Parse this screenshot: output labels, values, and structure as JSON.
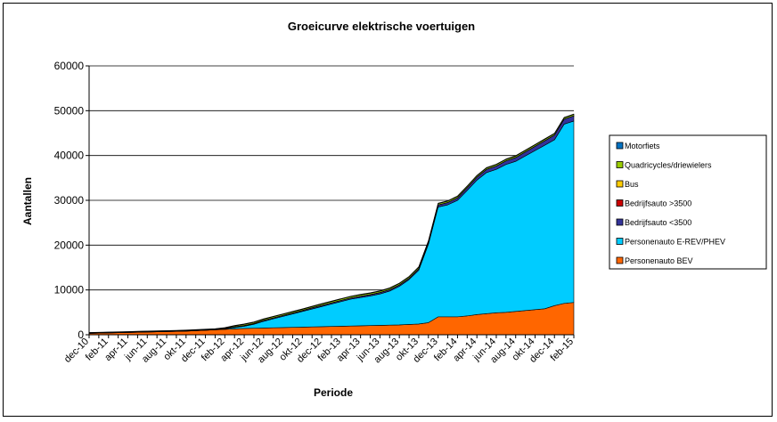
{
  "chart_data": {
    "type": "area",
    "title": "Groeicurve elektrische voertuigen",
    "xlabel": "Periode",
    "ylabel": "Aantallen",
    "ylim": [
      0,
      60000
    ],
    "yticks": [
      0,
      10000,
      20000,
      30000,
      40000,
      50000,
      60000
    ],
    "ytick_labels": [
      "0",
      "10000",
      "20000",
      "30000",
      "40000",
      "50000",
      "60000"
    ],
    "stacked": true,
    "grid": "horizontal",
    "legend_position": "right",
    "x": [
      "dec-10",
      "jan-11",
      "feb-11",
      "mrt-11",
      "apr-11",
      "mei-11",
      "jun-11",
      "jul-11",
      "aug-11",
      "sep-11",
      "okt-11",
      "nov-11",
      "dec-11",
      "jan-12",
      "feb-12",
      "mrt-12",
      "apr-12",
      "mei-12",
      "jun-12",
      "jul-12",
      "aug-12",
      "sep-12",
      "okt-12",
      "nov-12",
      "dec-12",
      "jan-13",
      "feb-13",
      "mrt-13",
      "apr-13",
      "mei-13",
      "jun-13",
      "jul-13",
      "aug-13",
      "sep-13",
      "okt-13",
      "nov-13",
      "dec-13",
      "jan-14",
      "feb-14",
      "mrt-14",
      "apr-14",
      "mei-14",
      "jun-14",
      "jul-14",
      "aug-14",
      "sep-14",
      "okt-14",
      "nov-14",
      "dec-14",
      "jan-15",
      "feb-15"
    ],
    "x_tick_labels": [
      "dec-10",
      "feb-11",
      "apr-11",
      "jun-11",
      "aug-11",
      "okt-11",
      "dec-11",
      "feb-12",
      "apr-12",
      "jun-12",
      "aug-12",
      "okt-12",
      "dec-12",
      "feb-13",
      "apr-13",
      "jun-13",
      "aug-13",
      "okt-13",
      "dec-13",
      "feb-14",
      "apr-14",
      "jun-14",
      "aug-14",
      "okt-14",
      "dec-14",
      "feb-15"
    ],
    "series": [
      {
        "name": "Personenauto BEV",
        "color": "#FF6600",
        "values": [
          300,
          350,
          400,
          450,
          500,
          550,
          600,
          650,
          700,
          750,
          800,
          900,
          1000,
          1100,
          1200,
          1300,
          1400,
          1450,
          1500,
          1550,
          1600,
          1650,
          1700,
          1750,
          1800,
          1850,
          1900,
          1950,
          2000,
          2050,
          2100,
          2150,
          2200,
          2300,
          2400,
          2700,
          4000,
          4000,
          4000,
          4200,
          4500,
          4700,
          4900,
          5000,
          5200,
          5400,
          5600,
          5800,
          6500,
          7000,
          7200
        ]
      },
      {
        "name": "Personenauto E-REV/PHEV",
        "color": "#00CCFF",
        "values": [
          0,
          0,
          0,
          0,
          0,
          0,
          0,
          0,
          0,
          0,
          0,
          0,
          0,
          0,
          100,
          300,
          500,
          900,
          1500,
          2000,
          2500,
          3000,
          3500,
          4000,
          4500,
          5000,
          5500,
          6000,
          6300,
          6600,
          7000,
          7600,
          8600,
          10000,
          12000,
          17500,
          24500,
          25000,
          26000,
          28000,
          30000,
          31500,
          32000,
          33000,
          33500,
          34500,
          35500,
          36500,
          37000,
          40000,
          40500
        ]
      },
      {
        "name": "Bedrijfsauto <3500",
        "color": "#333399",
        "values": [
          100,
          100,
          100,
          100,
          100,
          100,
          100,
          100,
          100,
          100,
          100,
          100,
          100,
          100,
          100,
          150,
          150,
          150,
          200,
          200,
          200,
          200,
          200,
          250,
          250,
          250,
          250,
          250,
          300,
          300,
          300,
          300,
          300,
          300,
          350,
          400,
          450,
          500,
          550,
          600,
          650,
          700,
          750,
          800,
          850,
          900,
          950,
          1000,
          1050,
          1100,
          1150
        ]
      },
      {
        "name": "Bedrijfsauto >3500",
        "color": "#CC0000",
        "values": [
          10,
          10,
          10,
          10,
          10,
          10,
          10,
          10,
          10,
          10,
          10,
          10,
          10,
          10,
          10,
          10,
          10,
          10,
          10,
          10,
          10,
          10,
          10,
          10,
          10,
          10,
          10,
          10,
          10,
          10,
          10,
          10,
          10,
          10,
          10,
          10,
          10,
          10,
          10,
          10,
          10,
          10,
          10,
          10,
          10,
          10,
          10,
          10,
          10,
          10,
          10
        ]
      },
      {
        "name": "Bus",
        "color": "#FFCC00",
        "values": [
          10,
          10,
          10,
          10,
          10,
          10,
          10,
          10,
          10,
          10,
          10,
          10,
          10,
          10,
          10,
          10,
          10,
          10,
          10,
          10,
          10,
          10,
          10,
          10,
          10,
          10,
          10,
          10,
          10,
          10,
          10,
          10,
          10,
          10,
          10,
          10,
          10,
          10,
          10,
          10,
          10,
          10,
          10,
          10,
          10,
          10,
          10,
          10,
          10,
          10,
          10
        ]
      },
      {
        "name": "Quadricycles/driewielers",
        "color": "#99CC00",
        "values": [
          50,
          50,
          50,
          50,
          50,
          60,
          60,
          60,
          60,
          60,
          70,
          70,
          70,
          80,
          100,
          200,
          250,
          250,
          250,
          250,
          250,
          250,
          250,
          250,
          300,
          300,
          300,
          300,
          300,
          300,
          300,
          300,
          300,
          300,
          300,
          300,
          300,
          300,
          300,
          300,
          300,
          300,
          300,
          300,
          300,
          300,
          300,
          300,
          300,
          300,
          300
        ]
      },
      {
        "name": "Motorfiets",
        "color": "#0070C0",
        "values": [
          40,
          40,
          40,
          40,
          40,
          50,
          50,
          50,
          50,
          50,
          60,
          60,
          60,
          60,
          80,
          100,
          100,
          100,
          100,
          100,
          100,
          100,
          100,
          100,
          100,
          100,
          100,
          100,
          100,
          100,
          100,
          100,
          100,
          100,
          100,
          100,
          100,
          100,
          100,
          100,
          100,
          100,
          100,
          100,
          100,
          100,
          100,
          100,
          100,
          100,
          100
        ]
      }
    ]
  }
}
